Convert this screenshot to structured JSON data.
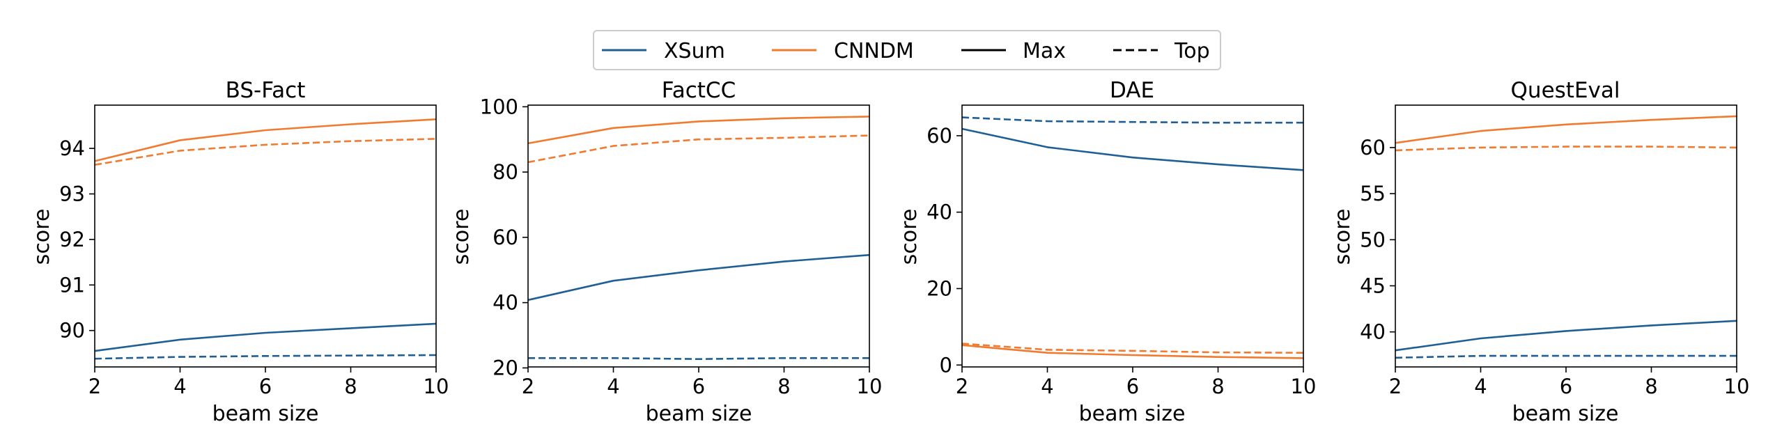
{
  "legend": {
    "entries": [
      {
        "label": "XSum",
        "color": "#1f5f96",
        "dash": "solid"
      },
      {
        "label": "CNNDM",
        "color": "#f27a2f",
        "dash": "solid"
      },
      {
        "label": "Max",
        "color": "#000000",
        "dash": "solid"
      },
      {
        "label": "Top",
        "color": "#000000",
        "dash": "dashed"
      }
    ]
  },
  "chart_data": [
    {
      "type": "line",
      "title": "BS-Fact",
      "xlabel": "beam size",
      "ylabel": "score",
      "x": [
        2,
        4,
        6,
        8,
        10
      ],
      "xlim": [
        2,
        10
      ],
      "ylim": [
        89.2,
        94.95
      ],
      "xticks": [
        2,
        4,
        6,
        8,
        10
      ],
      "yticks": [
        90,
        91,
        92,
        93,
        94
      ],
      "series": [
        {
          "name": "CNNDM",
          "style": "Max",
          "color": "#f27a2f",
          "values": [
            93.72,
            94.18,
            94.4,
            94.53,
            94.64
          ]
        },
        {
          "name": "CNNDM",
          "style": "Top",
          "color": "#f27a2f",
          "values": [
            93.64,
            93.95,
            94.08,
            94.16,
            94.21
          ]
        },
        {
          "name": "XSum",
          "style": "Max",
          "color": "#1f5f96",
          "values": [
            89.55,
            89.8,
            89.95,
            90.05,
            90.15
          ]
        },
        {
          "name": "XSum",
          "style": "Top",
          "color": "#1f5f96",
          "values": [
            89.38,
            89.42,
            89.44,
            89.45,
            89.46
          ]
        }
      ]
    },
    {
      "type": "line",
      "title": "FactCC",
      "xlabel": "beam size",
      "ylabel": "score",
      "x": [
        2,
        4,
        6,
        8,
        10
      ],
      "xlim": [
        2,
        10
      ],
      "ylim": [
        20.3,
        100.5
      ],
      "xticks": [
        2,
        4,
        6,
        8,
        10
      ],
      "yticks": [
        20,
        40,
        60,
        80,
        100
      ],
      "series": [
        {
          "name": "CNNDM",
          "style": "Max",
          "color": "#f27a2f",
          "values": [
            88.8,
            93.5,
            95.5,
            96.5,
            97
          ]
        },
        {
          "name": "CNNDM",
          "style": "Top",
          "color": "#f27a2f",
          "values": [
            83,
            88,
            90,
            90.5,
            91.2
          ]
        },
        {
          "name": "XSum",
          "style": "Max",
          "color": "#1f5f96",
          "values": [
            40.8,
            46.7,
            49.9,
            52.6,
            54.6
          ]
        },
        {
          "name": "XSum",
          "style": "Top",
          "color": "#1f5f96",
          "values": [
            23,
            23,
            22.7,
            23,
            23
          ]
        }
      ]
    },
    {
      "type": "line",
      "title": "DAE",
      "xlabel": "beam size",
      "ylabel": "score",
      "x": [
        2,
        4,
        6,
        8,
        10
      ],
      "xlim": [
        2,
        10
      ],
      "ylim": [
        -0.5,
        68
      ],
      "xticks": [
        2,
        4,
        6,
        8,
        10
      ],
      "yticks": [
        0,
        20,
        40,
        60
      ],
      "series": [
        {
          "name": "XSum",
          "style": "Top",
          "color": "#1f5f96",
          "values": [
            64.8,
            63.8,
            63.6,
            63.4,
            63.4
          ]
        },
        {
          "name": "XSum",
          "style": "Max",
          "color": "#1f5f96",
          "values": [
            61.8,
            57,
            54.3,
            52.5,
            51
          ]
        },
        {
          "name": "CNNDM",
          "style": "Top",
          "color": "#f27a2f",
          "values": [
            5.6,
            4,
            3.7,
            3.3,
            3.2
          ]
        },
        {
          "name": "CNNDM",
          "style": "Max",
          "color": "#f27a2f",
          "values": [
            5.2,
            3.2,
            2.6,
            2.1,
            1.8
          ]
        }
      ]
    },
    {
      "type": "line",
      "title": "QuestEval",
      "xlabel": "beam size",
      "ylabel": "score",
      "x": [
        2,
        4,
        6,
        8,
        10
      ],
      "xlim": [
        2,
        10
      ],
      "ylim": [
        36.2,
        64.6
      ],
      "xticks": [
        2,
        4,
        6,
        8,
        10
      ],
      "yticks": [
        40,
        45,
        50,
        55,
        60
      ],
      "series": [
        {
          "name": "CNNDM",
          "style": "Max",
          "color": "#f27a2f",
          "values": [
            60.5,
            61.8,
            62.5,
            63,
            63.4
          ]
        },
        {
          "name": "CNNDM",
          "style": "Top",
          "color": "#f27a2f",
          "values": [
            59.7,
            60,
            60.1,
            60.1,
            60
          ]
        },
        {
          "name": "XSum",
          "style": "Max",
          "color": "#1f5f96",
          "values": [
            38,
            39.3,
            40.1,
            40.7,
            41.2
          ]
        },
        {
          "name": "XSum",
          "style": "Top",
          "color": "#1f5f96",
          "values": [
            37.2,
            37.4,
            37.4,
            37.4,
            37.4
          ]
        }
      ]
    }
  ]
}
